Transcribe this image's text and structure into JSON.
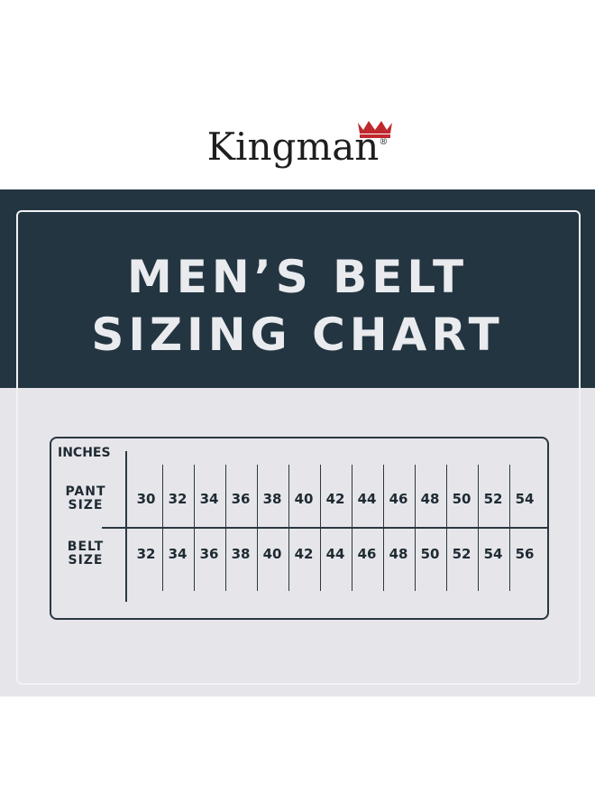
{
  "brand": {
    "name": "Kingman",
    "registered": "®"
  },
  "title": {
    "line1": "MEN’S BELT",
    "line2": "SIZING CHART"
  },
  "colors": {
    "band": "#233541",
    "panel": "#e6e6ea",
    "text": "#1f2a33",
    "crown": "#c0282d"
  },
  "table": {
    "unit_label": "INCHES",
    "rows": [
      {
        "label_top": "PANT",
        "label_bottom": "SIZE",
        "values": [
          "30",
          "32",
          "34",
          "36",
          "38",
          "40",
          "42",
          "44",
          "46",
          "48",
          "50",
          "52",
          "54"
        ]
      },
      {
        "label_top": "BELT",
        "label_bottom": "SIZE",
        "values": [
          "32",
          "34",
          "36",
          "38",
          "40",
          "42",
          "44",
          "46",
          "48",
          "50",
          "52",
          "54",
          "56"
        ]
      }
    ]
  }
}
